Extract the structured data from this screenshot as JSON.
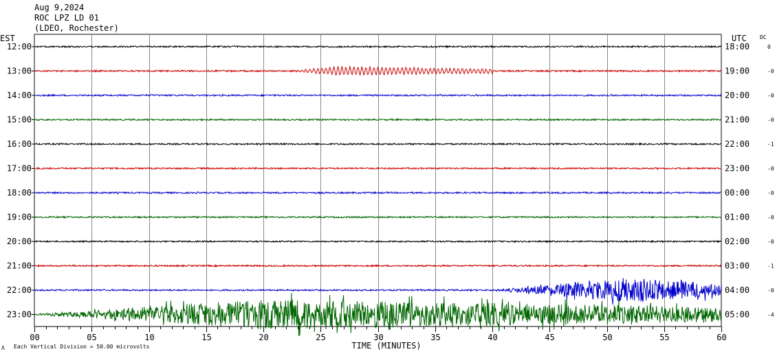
{
  "header": {
    "date": "Aug 9,2024",
    "station": "ROC LPZ LD 01",
    "network": "(LDEO, Rochester)"
  },
  "labels": {
    "left_timezone": "EST",
    "right_timezone": "UTC",
    "dc_header": "DC",
    "footer_scale": "Each Vertical Division =   50.00 microvolts",
    "footer_marker": "Λ"
  },
  "chart_data": {
    "type": "line",
    "title": "",
    "xlabel": "TIME (MINUTES)",
    "xlim": [
      0,
      60
    ],
    "xticks": [
      "00",
      "05",
      "10",
      "15",
      "20",
      "25",
      "30",
      "35",
      "40",
      "45",
      "50",
      "55",
      "60"
    ],
    "trace_colors": [
      "#000000",
      "#cc0000",
      "#0000cc",
      "#006600"
    ],
    "traces": [
      {
        "left_label": "12:00",
        "right_label": "18:00",
        "dc": "0",
        "color": "#000000",
        "noise": 1.0,
        "events": []
      },
      {
        "left_label": "13:00",
        "right_label": "19:00",
        "dc": "-0",
        "color": "#cc0000",
        "noise": 1.0,
        "events": [
          {
            "start": 22.5,
            "peak": 26.5,
            "end": 40.0,
            "amplitude": 6,
            "period": 0.35
          }
        ]
      },
      {
        "left_label": "14:00",
        "right_label": "20:00",
        "dc": "-0",
        "color": "#0000cc",
        "noise": 1.0,
        "events": []
      },
      {
        "left_label": "15:00",
        "right_label": "21:00",
        "dc": "-0",
        "color": "#006600",
        "noise": 1.0,
        "events": []
      },
      {
        "left_label": "16:00",
        "right_label": "22:00",
        "dc": "-1",
        "color": "#000000",
        "noise": 1.0,
        "events": []
      },
      {
        "left_label": "17:00",
        "right_label": "23:00",
        "dc": "-0",
        "color": "#cc0000",
        "noise": 1.0,
        "events": []
      },
      {
        "left_label": "18:00",
        "right_label": "00:00",
        "dc": "-0",
        "color": "#0000cc",
        "noise": 1.0,
        "events": []
      },
      {
        "left_label": "19:00",
        "right_label": "01:00",
        "dc": "-0",
        "color": "#006600",
        "noise": 1.0,
        "events": []
      },
      {
        "left_label": "20:00",
        "right_label": "02:00",
        "dc": "-0",
        "color": "#000000",
        "noise": 1.0,
        "events": []
      },
      {
        "left_label": "21:00",
        "right_label": "03:00",
        "dc": "-1",
        "color": "#cc0000",
        "noise": 1.0,
        "events": []
      },
      {
        "left_label": "22:00",
        "right_label": "04:00",
        "dc": "-0",
        "color": "#0000cc",
        "noise": 1.0,
        "events": [
          {
            "start": 40.0,
            "peak": 52.0,
            "end": 60.0,
            "amplitude": 18,
            "period": 0.25,
            "noisy": true
          }
        ]
      },
      {
        "left_label": "23:00",
        "right_label": "05:00",
        "dc": "-4",
        "color": "#006600",
        "noise": 1.0,
        "events": [
          {
            "start": 0.0,
            "peak": 20.0,
            "end": 60.0,
            "amplitude": 22,
            "period": 0.2,
            "noisy": true
          }
        ]
      }
    ]
  }
}
